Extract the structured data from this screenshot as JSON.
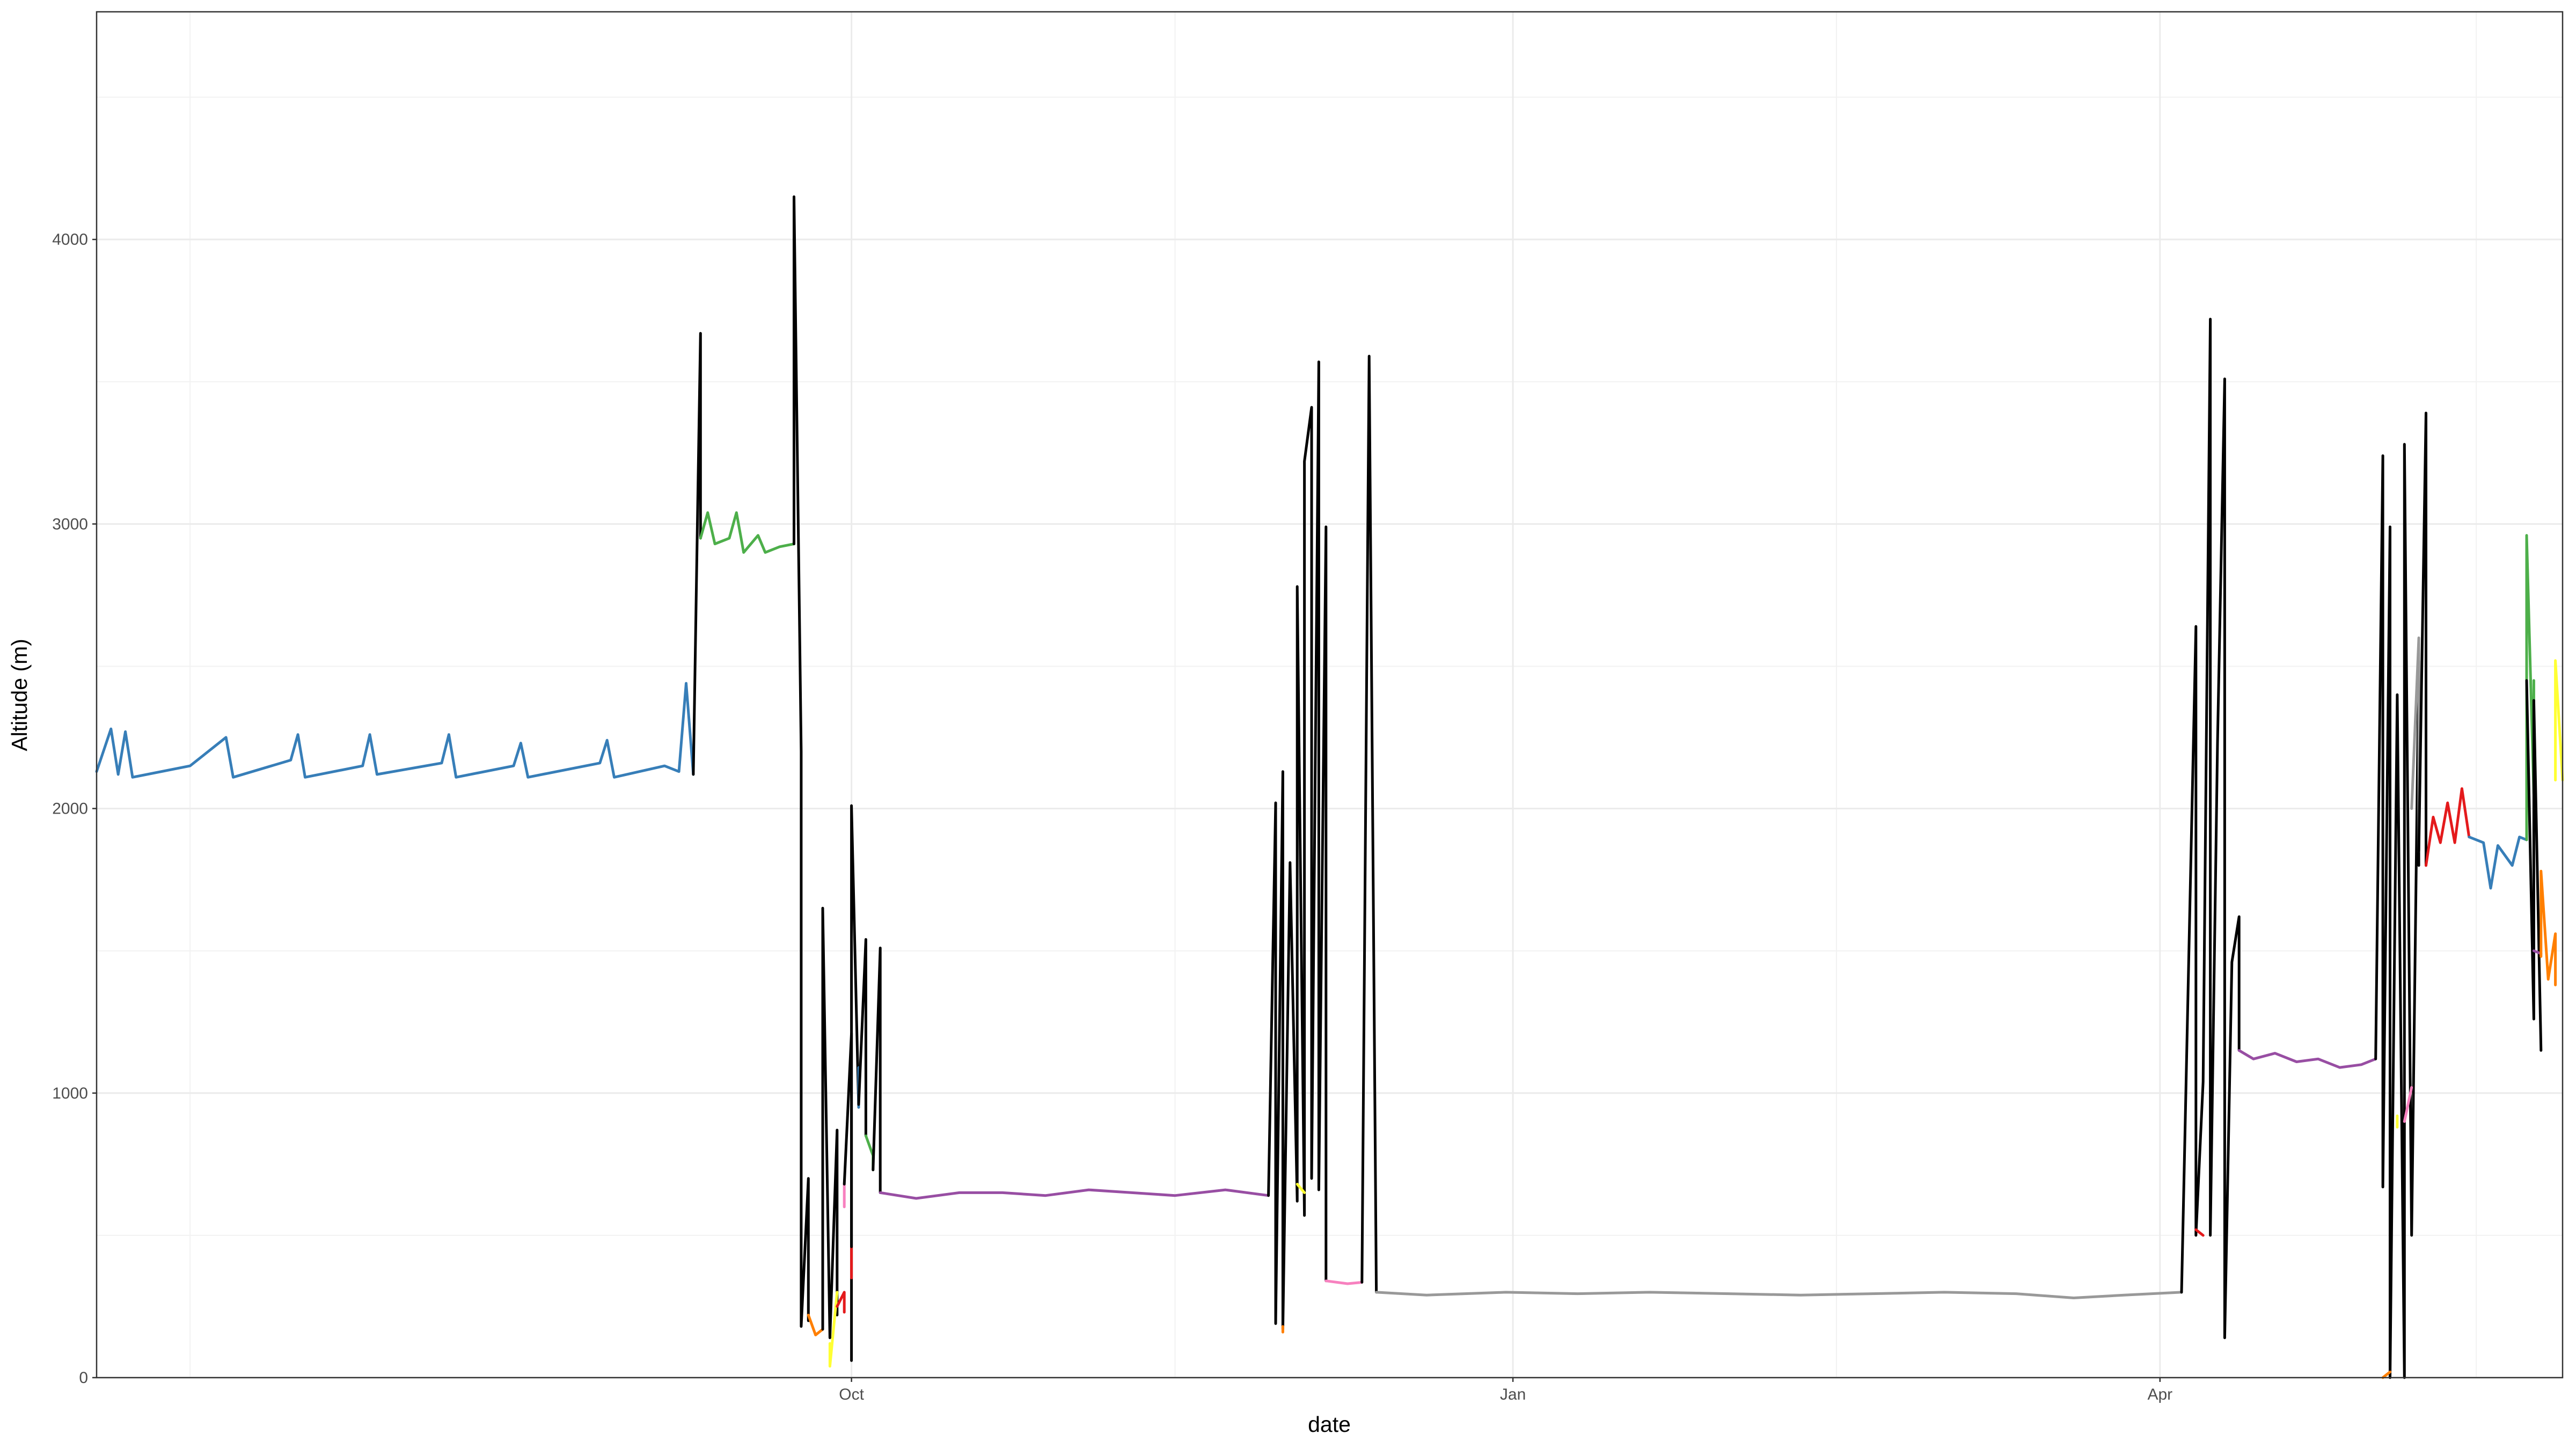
{
  "chart_data": {
    "type": "line",
    "title": "",
    "xlabel": "date",
    "ylabel": "Altitude (m)",
    "ylim": [
      0,
      4800
    ],
    "xlim": [
      "2021-06-18",
      "2022-05-27"
    ],
    "x_ticks": [
      {
        "date": "2021-10-01",
        "label": "Oct"
      },
      {
        "date": "2022-01-01",
        "label": "Jan"
      },
      {
        "date": "2022-04-01",
        "label": "Apr"
      }
    ],
    "x_minor_ticks": [
      "2021-07-01",
      "2021-11-15",
      "2022-02-15",
      "2022-05-15"
    ],
    "y_ticks": [
      0,
      1000,
      2000,
      3000,
      4000
    ],
    "y_minor_ticks": [
      500,
      1500,
      2500,
      3500,
      4500
    ],
    "grid": true,
    "legend": "none",
    "series": [
      {
        "color": "#377eb8",
        "points": [
          [
            "2021-06-18",
            2130
          ],
          [
            "2021-06-20",
            2280
          ],
          [
            "2021-06-21",
            2120
          ],
          [
            "2021-06-22",
            2270
          ],
          [
            "2021-06-23",
            2110
          ],
          [
            "2021-07-01",
            2150
          ],
          [
            "2021-07-06",
            2250
          ],
          [
            "2021-07-07",
            2110
          ],
          [
            "2021-07-15",
            2170
          ],
          [
            "2021-07-16",
            2260
          ],
          [
            "2021-07-17",
            2110
          ],
          [
            "2021-07-25",
            2150
          ],
          [
            "2021-07-26",
            2260
          ],
          [
            "2021-07-27",
            2120
          ],
          [
            "2021-08-05",
            2160
          ],
          [
            "2021-08-06",
            2260
          ],
          [
            "2021-08-07",
            2110
          ],
          [
            "2021-08-15",
            2150
          ],
          [
            "2021-08-16",
            2230
          ],
          [
            "2021-08-17",
            2110
          ],
          [
            "2021-08-27",
            2160
          ],
          [
            "2021-08-28",
            2240
          ],
          [
            "2021-08-29",
            2110
          ],
          [
            "2021-09-05",
            2150
          ],
          [
            "2021-09-07",
            2130
          ],
          [
            "2021-09-08",
            2440
          ],
          [
            "2021-09-09",
            2120
          ]
        ]
      },
      {
        "color": "#000000",
        "points": [
          [
            "2021-09-09",
            2120
          ],
          [
            "2021-09-10",
            3670
          ],
          [
            "2021-09-10",
            2950
          ]
        ]
      },
      {
        "color": "#4daf4a",
        "points": [
          [
            "2021-09-10",
            2950
          ],
          [
            "2021-09-11",
            3040
          ],
          [
            "2021-09-12",
            2930
          ],
          [
            "2021-09-14",
            2950
          ],
          [
            "2021-09-15",
            3040
          ],
          [
            "2021-09-16",
            2900
          ],
          [
            "2021-09-18",
            2960
          ],
          [
            "2021-09-19",
            2900
          ],
          [
            "2021-09-21",
            2920
          ],
          [
            "2021-09-23",
            2930
          ]
        ]
      },
      {
        "color": "#000000",
        "points": [
          [
            "2021-09-23",
            2930
          ],
          [
            "2021-09-23",
            3880
          ],
          [
            "2021-09-23",
            4150
          ],
          [
            "2021-09-24",
            2200
          ],
          [
            "2021-09-24",
            180
          ],
          [
            "2021-09-25",
            700
          ],
          [
            "2021-09-25",
            200
          ]
        ]
      },
      {
        "color": "#ff7f00",
        "points": [
          [
            "2021-09-25",
            220
          ],
          [
            "2021-09-26",
            150
          ],
          [
            "2021-09-27",
            170
          ]
        ]
      },
      {
        "color": "#000000",
        "points": [
          [
            "2021-09-27",
            170
          ],
          [
            "2021-09-27",
            1650
          ],
          [
            "2021-09-28",
            140
          ],
          [
            "2021-09-29",
            870
          ],
          [
            "2021-09-29",
            220
          ]
        ]
      },
      {
        "color": "#ffff33",
        "points": [
          [
            "2021-09-28",
            120
          ],
          [
            "2021-09-28",
            40
          ],
          [
            "2021-09-29",
            300
          ]
        ]
      },
      {
        "color": "#e41a1c",
        "points": [
          [
            "2021-09-29",
            250
          ],
          [
            "2021-09-30",
            300
          ],
          [
            "2021-09-30",
            230
          ]
        ]
      },
      {
        "color": "#f781bf",
        "points": [
          [
            "2021-09-30",
            600
          ],
          [
            "2021-09-30",
            680
          ]
        ]
      },
      {
        "color": "#000000",
        "points": [
          [
            "2021-09-30",
            680
          ],
          [
            "2021-10-01",
            1210
          ],
          [
            "2021-10-01",
            60
          ],
          [
            "2021-10-01",
            440
          ]
        ]
      },
      {
        "color": "#e41a1c",
        "points": [
          [
            "2021-10-01",
            350
          ],
          [
            "2021-10-01",
            460
          ]
        ]
      },
      {
        "color": "#000000",
        "points": [
          [
            "2021-10-01",
            460
          ],
          [
            "2021-10-01",
            2010
          ],
          [
            "2021-10-02",
            950
          ]
        ]
      },
      {
        "color": "#377eb8",
        "points": [
          [
            "2021-10-02",
            950
          ],
          [
            "2021-10-02",
            1090
          ],
          [
            "2021-10-02",
            960
          ]
        ]
      },
      {
        "color": "#000000",
        "points": [
          [
            "2021-10-02",
            960
          ],
          [
            "2021-10-03",
            1540
          ],
          [
            "2021-10-03",
            850
          ]
        ]
      },
      {
        "color": "#4daf4a",
        "points": [
          [
            "2021-10-03",
            850
          ],
          [
            "2021-10-04",
            780
          ],
          [
            "2021-10-04",
            730
          ]
        ]
      },
      {
        "color": "#000000",
        "points": [
          [
            "2021-10-04",
            730
          ],
          [
            "2021-10-05",
            1510
          ],
          [
            "2021-10-05",
            650
          ]
        ]
      },
      {
        "color": "#984ea3",
        "points": [
          [
            "2021-10-05",
            650
          ],
          [
            "2021-10-10",
            630
          ],
          [
            "2021-10-16",
            650
          ],
          [
            "2021-10-22",
            650
          ],
          [
            "2021-10-28",
            640
          ],
          [
            "2021-11-03",
            660
          ],
          [
            "2021-11-09",
            650
          ],
          [
            "2021-11-15",
            640
          ],
          [
            "2021-11-22",
            660
          ],
          [
            "2021-11-28",
            640
          ]
        ]
      },
      {
        "color": "#000000",
        "points": [
          [
            "2021-11-28",
            640
          ],
          [
            "2021-11-29",
            2020
          ],
          [
            "2021-11-29",
            190
          ],
          [
            "2021-11-30",
            2130
          ],
          [
            "2021-11-30",
            170
          ],
          [
            "2021-12-01",
            1810
          ],
          [
            "2021-12-02",
            620
          ],
          [
            "2021-12-02",
            2780
          ],
          [
            "2021-12-03",
            570
          ],
          [
            "2021-12-03",
            3220
          ],
          [
            "2021-12-04",
            3410
          ],
          [
            "2021-12-04",
            700
          ],
          [
            "2021-12-05",
            3570
          ],
          [
            "2021-12-05",
            660
          ],
          [
            "2021-12-06",
            2990
          ],
          [
            "2021-12-06",
            340
          ]
        ]
      },
      {
        "color": "#ffff33",
        "points": [
          [
            "2021-12-02",
            680
          ],
          [
            "2021-12-03",
            650
          ]
        ]
      },
      {
        "color": "#ff7f00",
        "points": [
          [
            "2021-11-30",
            160
          ],
          [
            "2021-11-30",
            180
          ]
        ]
      },
      {
        "color": "#f781bf",
        "points": [
          [
            "2021-12-06",
            340
          ],
          [
            "2021-12-09",
            330
          ],
          [
            "2021-12-11",
            335
          ]
        ]
      },
      {
        "color": "#000000",
        "points": [
          [
            "2021-12-11",
            335
          ],
          [
            "2021-12-12",
            3590
          ],
          [
            "2021-12-13",
            300
          ]
        ]
      },
      {
        "color": "#999999",
        "points": [
          [
            "2021-12-13",
            300
          ],
          [
            "2021-12-20",
            290
          ],
          [
            "2021-12-31",
            300
          ],
          [
            "2022-01-10",
            295
          ],
          [
            "2022-01-20",
            300
          ],
          [
            "2022-01-31",
            295
          ],
          [
            "2022-02-10",
            290
          ],
          [
            "2022-02-20",
            295
          ],
          [
            "2022-03-02",
            300
          ],
          [
            "2022-03-12",
            295
          ],
          [
            "2022-03-20",
            280
          ],
          [
            "2022-03-27",
            290
          ],
          [
            "2022-04-04",
            300
          ]
        ]
      },
      {
        "color": "#000000",
        "points": [
          [
            "2022-04-04",
            300
          ],
          [
            "2022-04-06",
            2640
          ],
          [
            "2022-04-06",
            500
          ],
          [
            "2022-04-07",
            1040
          ],
          [
            "2022-04-08",
            3720
          ],
          [
            "2022-04-08",
            500
          ],
          [
            "2022-04-09",
            2230
          ],
          [
            "2022-04-10",
            3510
          ],
          [
            "2022-04-10",
            140
          ],
          [
            "2022-04-11",
            1460
          ],
          [
            "2022-04-12",
            1620
          ],
          [
            "2022-04-12",
            1150
          ]
        ]
      },
      {
        "color": "#e41a1c",
        "points": [
          [
            "2022-04-06",
            520
          ],
          [
            "2022-04-07",
            500
          ]
        ]
      },
      {
        "color": "#984ea3",
        "points": [
          [
            "2022-04-12",
            1150
          ],
          [
            "2022-04-14",
            1120
          ],
          [
            "2022-04-17",
            1140
          ],
          [
            "2022-04-20",
            1110
          ],
          [
            "2022-04-23",
            1120
          ],
          [
            "2022-04-26",
            1090
          ],
          [
            "2022-04-29",
            1100
          ],
          [
            "2022-05-01",
            1120
          ]
        ]
      },
      {
        "color": "#000000",
        "points": [
          [
            "2022-05-01",
            1120
          ],
          [
            "2022-05-02",
            3240
          ],
          [
            "2022-05-02",
            670
          ],
          [
            "2022-05-03",
            2990
          ],
          [
            "2022-05-03",
            0
          ],
          [
            "2022-05-04",
            2400
          ],
          [
            "2022-05-05",
            0
          ],
          [
            "2022-05-05",
            3280
          ],
          [
            "2022-05-06",
            500
          ],
          [
            "2022-05-07",
            2520
          ],
          [
            "2022-05-07",
            1800
          ]
        ]
      },
      {
        "color": "#ff7f00",
        "points": [
          [
            "2022-05-02",
            0
          ],
          [
            "2022-05-03",
            20
          ]
        ]
      },
      {
        "color": "#ffff33",
        "points": [
          [
            "2022-05-04",
            880
          ],
          [
            "2022-05-04",
            920
          ]
        ]
      },
      {
        "color": "#f781bf",
        "points": [
          [
            "2022-05-05",
            900
          ],
          [
            "2022-05-06",
            1020
          ]
        ]
      },
      {
        "color": "#999999",
        "points": [
          [
            "2022-05-06",
            2000
          ],
          [
            "2022-05-07",
            2600
          ],
          [
            "2022-05-07",
            1850
          ]
        ]
      },
      {
        "color": "#000000",
        "points": [
          [
            "2022-05-07",
            1850
          ],
          [
            "2022-05-08",
            3390
          ],
          [
            "2022-05-08",
            1800
          ]
        ]
      },
      {
        "color": "#e41a1c",
        "points": [
          [
            "2022-05-08",
            1800
          ],
          [
            "2022-05-09",
            1970
          ],
          [
            "2022-05-10",
            1880
          ],
          [
            "2022-05-11",
            2020
          ],
          [
            "2022-05-12",
            1880
          ],
          [
            "2022-05-13",
            2070
          ],
          [
            "2022-05-14",
            1900
          ]
        ]
      },
      {
        "color": "#377eb8",
        "points": [
          [
            "2022-05-14",
            1900
          ],
          [
            "2022-05-16",
            1880
          ],
          [
            "2022-05-17",
            1720
          ],
          [
            "2022-05-18",
            1870
          ],
          [
            "2022-05-20",
            1800
          ],
          [
            "2022-05-21",
            1900
          ],
          [
            "2022-05-22",
            1890
          ]
        ]
      },
      {
        "color": "#4daf4a",
        "points": [
          [
            "2022-05-22",
            1890
          ],
          [
            "2022-05-22",
            2960
          ],
          [
            "2022-05-23",
            2050
          ],
          [
            "2022-05-23",
            2450
          ]
        ]
      },
      {
        "color": "#000000",
        "points": [
          [
            "2022-05-22",
            2450
          ],
          [
            "2022-05-23",
            1260
          ],
          [
            "2022-05-23",
            2380
          ],
          [
            "2022-05-24",
            1150
          ]
        ]
      },
      {
        "color": "#984ea3",
        "points": [
          [
            "2022-05-23",
            1500
          ],
          [
            "2022-05-24",
            1490
          ]
        ]
      },
      {
        "color": "#ff7f00",
        "points": [
          [
            "2022-05-24",
            1480
          ],
          [
            "2022-05-24",
            1780
          ],
          [
            "2022-05-25",
            1400
          ],
          [
            "2022-05-26",
            1560
          ],
          [
            "2022-05-26",
            1380
          ]
        ]
      },
      {
        "color": "#ffff33",
        "points": [
          [
            "2022-05-26",
            2100
          ],
          [
            "2022-05-26",
            2520
          ],
          [
            "2022-05-27",
            2100
          ]
        ]
      }
    ]
  }
}
